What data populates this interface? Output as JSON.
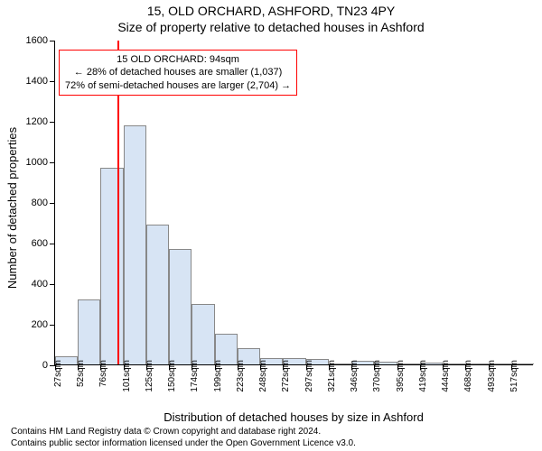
{
  "titles": {
    "line1": "15, OLD ORCHARD, ASHFORD, TN23 4PY",
    "line2": "Size of property relative to detached houses in Ashford",
    "fontsize": 14,
    "color": "#000000"
  },
  "ylabel": "Number of detached properties",
  "xlabel": "Distribution of detached houses by size in Ashford",
  "label_fontsize": 13,
  "attribution": {
    "line1": "Contains HM Land Registry data © Crown copyright and database right 2024.",
    "line2": "Contains public sector information licensed under the Open Government Licence v3.0.",
    "fontsize": 10
  },
  "histogram": {
    "type": "histogram",
    "x_start": 27,
    "x_step": 24.5,
    "bar_count": 21,
    "values": [
      40,
      320,
      970,
      1180,
      690,
      570,
      300,
      150,
      80,
      30,
      30,
      25,
      0,
      20,
      15,
      5,
      10,
      0,
      0,
      5,
      5
    ],
    "xtick_labels": [
      "27sqm",
      "52sqm",
      "76sqm",
      "101sqm",
      "125sqm",
      "150sqm",
      "174sqm",
      "199sqm",
      "223sqm",
      "248sqm",
      "272sqm",
      "297sqm",
      "321sqm",
      "346sqm",
      "370sqm",
      "395sqm",
      "419sqm",
      "444sqm",
      "468sqm",
      "493sqm",
      "517sqm"
    ],
    "bar_fill": "#d7e4f4",
    "bar_stroke": "#888888",
    "bar_stroke_width": 1,
    "ylim": [
      0,
      1600
    ],
    "ytick_step": 200,
    "yticks": [
      0,
      200,
      400,
      600,
      800,
      1000,
      1200,
      1400,
      1600
    ],
    "xtick_fontsize": 10,
    "ytick_fontsize": 11,
    "background": "#ffffff",
    "axis_color": "#000000"
  },
  "marker": {
    "value_sqm": 94,
    "color": "#ff0000",
    "width": 2
  },
  "annotation": {
    "line1": "15 OLD ORCHARD: 94sqm",
    "line2": "← 28% of detached houses are smaller (1,037)",
    "line3": "72% of semi-detached houses are larger (2,704) →",
    "border_color": "#ff0000",
    "background": "#ffffff",
    "fontsize": 11
  }
}
